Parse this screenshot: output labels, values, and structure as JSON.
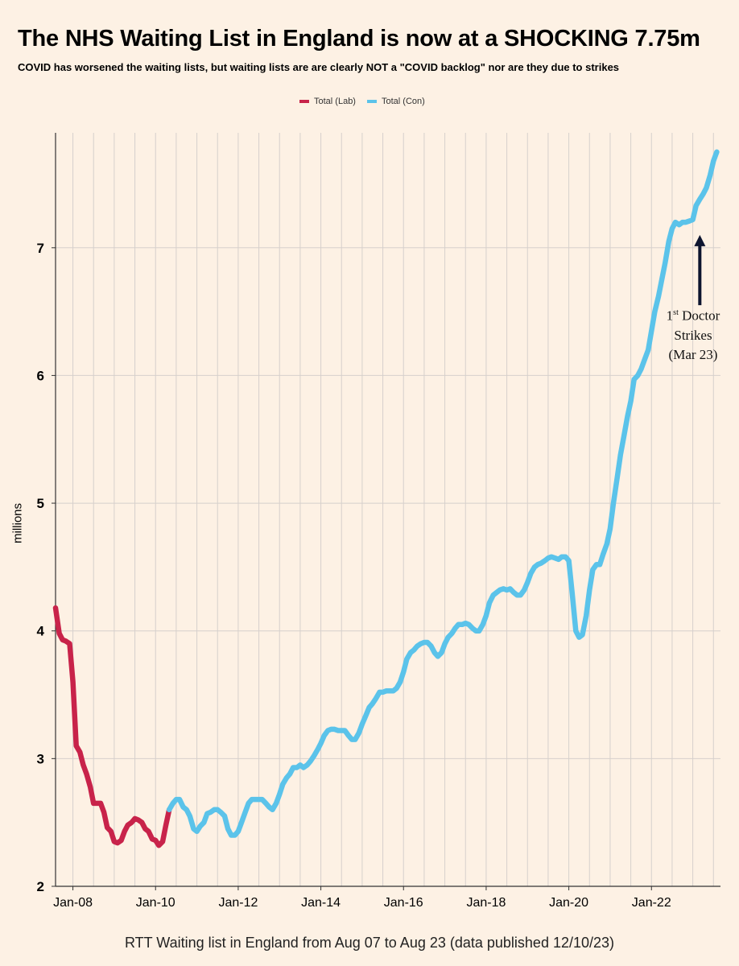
{
  "title": "The NHS Waiting List in England is now at a SHOCKING 7.75m",
  "subtitle": "COVID has worsened the waiting lists, but waiting lists are are clearly NOT a \"COVID backlog\" nor are they due to strikes",
  "caption": "RTT Waiting list in England from Aug 07 to Aug 23 (data published 12/10/23)",
  "annotation": {
    "ordinal_number": "1",
    "ordinal_suffix": "st",
    "line1_rest": " Doctor",
    "line2": "Strikes",
    "line3": "(Mar 23)",
    "arrow_x": 2023.17,
    "arrow_from_y": 6.55,
    "arrow_to_y": 7.1
  },
  "colors": {
    "lab": "#c8234a",
    "con": "#5bc3ea",
    "grid": "#d6d0cc",
    "axis": "#333333",
    "background": "#fdf1e4"
  },
  "chart_data": {
    "type": "line",
    "title": "The NHS Waiting List in England is now at a SHOCKING 7.75m",
    "ylabel": "millions",
    "xlabel": "",
    "xlim": [
      2007.58,
      2023.67
    ],
    "ylim": [
      2,
      7.9
    ],
    "y_ticks": [
      2,
      3,
      4,
      5,
      6,
      7
    ],
    "x_ticks": [
      {
        "x": 2008,
        "label": "Jan-08"
      },
      {
        "x": 2010,
        "label": "Jan-10"
      },
      {
        "x": 2012,
        "label": "Jan-12"
      },
      {
        "x": 2014,
        "label": "Jan-14"
      },
      {
        "x": 2016,
        "label": "Jan-16"
      },
      {
        "x": 2018,
        "label": "Jan-18"
      },
      {
        "x": 2020,
        "label": "Jan-20"
      },
      {
        "x": 2022,
        "label": "Jan-22"
      }
    ],
    "grid": true,
    "legend_position": "top-center",
    "series": [
      {
        "name": "Total (Lab)",
        "color": "#c8234a",
        "points": [
          [
            2007.58,
            4.18
          ],
          [
            2007.67,
            3.98
          ],
          [
            2007.75,
            3.93
          ],
          [
            2007.83,
            3.92
          ],
          [
            2007.92,
            3.9
          ],
          [
            2008.0,
            3.6
          ],
          [
            2008.08,
            3.1
          ],
          [
            2008.17,
            3.05
          ],
          [
            2008.25,
            2.95
          ],
          [
            2008.33,
            2.88
          ],
          [
            2008.42,
            2.78
          ],
          [
            2008.5,
            2.65
          ],
          [
            2008.58,
            2.65
          ],
          [
            2008.67,
            2.65
          ],
          [
            2008.75,
            2.58
          ],
          [
            2008.83,
            2.46
          ],
          [
            2008.92,
            2.43
          ],
          [
            2009.0,
            2.35
          ],
          [
            2009.08,
            2.34
          ],
          [
            2009.17,
            2.36
          ],
          [
            2009.25,
            2.43
          ],
          [
            2009.33,
            2.48
          ],
          [
            2009.42,
            2.5
          ],
          [
            2009.5,
            2.53
          ],
          [
            2009.58,
            2.52
          ],
          [
            2009.67,
            2.5
          ],
          [
            2009.75,
            2.45
          ],
          [
            2009.83,
            2.43
          ],
          [
            2009.92,
            2.37
          ],
          [
            2010.0,
            2.36
          ],
          [
            2010.08,
            2.32
          ],
          [
            2010.17,
            2.35
          ],
          [
            2010.25,
            2.48
          ],
          [
            2010.33,
            2.6
          ]
        ]
      },
      {
        "name": "Total (Con)",
        "color": "#5bc3ea",
        "points": [
          [
            2010.33,
            2.6
          ],
          [
            2010.42,
            2.65
          ],
          [
            2010.5,
            2.68
          ],
          [
            2010.58,
            2.68
          ],
          [
            2010.67,
            2.62
          ],
          [
            2010.75,
            2.6
          ],
          [
            2010.83,
            2.55
          ],
          [
            2010.92,
            2.45
          ],
          [
            2011.0,
            2.43
          ],
          [
            2011.08,
            2.47
          ],
          [
            2011.17,
            2.5
          ],
          [
            2011.25,
            2.57
          ],
          [
            2011.33,
            2.58
          ],
          [
            2011.42,
            2.6
          ],
          [
            2011.5,
            2.6
          ],
          [
            2011.58,
            2.58
          ],
          [
            2011.67,
            2.55
          ],
          [
            2011.75,
            2.45
          ],
          [
            2011.83,
            2.4
          ],
          [
            2011.92,
            2.4
          ],
          [
            2012.0,
            2.43
          ],
          [
            2012.08,
            2.5
          ],
          [
            2012.17,
            2.58
          ],
          [
            2012.25,
            2.65
          ],
          [
            2012.33,
            2.68
          ],
          [
            2012.42,
            2.68
          ],
          [
            2012.5,
            2.68
          ],
          [
            2012.58,
            2.68
          ],
          [
            2012.67,
            2.65
          ],
          [
            2012.75,
            2.62
          ],
          [
            2012.83,
            2.6
          ],
          [
            2012.92,
            2.65
          ],
          [
            2013.0,
            2.72
          ],
          [
            2013.08,
            2.8
          ],
          [
            2013.17,
            2.85
          ],
          [
            2013.25,
            2.88
          ],
          [
            2013.33,
            2.93
          ],
          [
            2013.42,
            2.93
          ],
          [
            2013.5,
            2.95
          ],
          [
            2013.58,
            2.93
          ],
          [
            2013.67,
            2.95
          ],
          [
            2013.75,
            2.98
          ],
          [
            2013.83,
            3.02
          ],
          [
            2013.92,
            3.07
          ],
          [
            2014.0,
            3.12
          ],
          [
            2014.08,
            3.18
          ],
          [
            2014.17,
            3.22
          ],
          [
            2014.25,
            3.23
          ],
          [
            2014.33,
            3.23
          ],
          [
            2014.42,
            3.22
          ],
          [
            2014.5,
            3.22
          ],
          [
            2014.58,
            3.22
          ],
          [
            2014.67,
            3.18
          ],
          [
            2014.75,
            3.15
          ],
          [
            2014.83,
            3.15
          ],
          [
            2014.92,
            3.2
          ],
          [
            2015.0,
            3.27
          ],
          [
            2015.08,
            3.33
          ],
          [
            2015.17,
            3.4
          ],
          [
            2015.25,
            3.43
          ],
          [
            2015.33,
            3.47
          ],
          [
            2015.42,
            3.52
          ],
          [
            2015.5,
            3.52
          ],
          [
            2015.58,
            3.53
          ],
          [
            2015.67,
            3.53
          ],
          [
            2015.75,
            3.53
          ],
          [
            2015.83,
            3.55
          ],
          [
            2015.92,
            3.6
          ],
          [
            2016.0,
            3.68
          ],
          [
            2016.08,
            3.78
          ],
          [
            2016.17,
            3.83
          ],
          [
            2016.25,
            3.85
          ],
          [
            2016.33,
            3.88
          ],
          [
            2016.42,
            3.9
          ],
          [
            2016.5,
            3.91
          ],
          [
            2016.58,
            3.91
          ],
          [
            2016.67,
            3.88
          ],
          [
            2016.75,
            3.83
          ],
          [
            2016.83,
            3.8
          ],
          [
            2016.92,
            3.83
          ],
          [
            2017.0,
            3.9
          ],
          [
            2017.08,
            3.95
          ],
          [
            2017.17,
            3.98
          ],
          [
            2017.25,
            4.02
          ],
          [
            2017.33,
            4.05
          ],
          [
            2017.42,
            4.05
          ],
          [
            2017.5,
            4.06
          ],
          [
            2017.58,
            4.05
          ],
          [
            2017.67,
            4.02
          ],
          [
            2017.75,
            4.0
          ],
          [
            2017.83,
            4.0
          ],
          [
            2017.92,
            4.05
          ],
          [
            2018.0,
            4.12
          ],
          [
            2018.08,
            4.22
          ],
          [
            2018.17,
            4.28
          ],
          [
            2018.25,
            4.3
          ],
          [
            2018.33,
            4.32
          ],
          [
            2018.42,
            4.33
          ],
          [
            2018.5,
            4.32
          ],
          [
            2018.58,
            4.33
          ],
          [
            2018.67,
            4.3
          ],
          [
            2018.75,
            4.28
          ],
          [
            2018.83,
            4.28
          ],
          [
            2018.92,
            4.32
          ],
          [
            2019.0,
            4.38
          ],
          [
            2019.08,
            4.45
          ],
          [
            2019.17,
            4.5
          ],
          [
            2019.25,
            4.52
          ],
          [
            2019.33,
            4.53
          ],
          [
            2019.42,
            4.55
          ],
          [
            2019.5,
            4.57
          ],
          [
            2019.58,
            4.58
          ],
          [
            2019.67,
            4.57
          ],
          [
            2019.75,
            4.56
          ],
          [
            2019.83,
            4.58
          ],
          [
            2019.92,
            4.58
          ],
          [
            2020.0,
            4.55
          ],
          [
            2020.08,
            4.3
          ],
          [
            2020.17,
            4.0
          ],
          [
            2020.25,
            3.95
          ],
          [
            2020.33,
            3.97
          ],
          [
            2020.42,
            4.12
          ],
          [
            2020.5,
            4.32
          ],
          [
            2020.58,
            4.48
          ],
          [
            2020.67,
            4.52
          ],
          [
            2020.75,
            4.52
          ],
          [
            2020.83,
            4.6
          ],
          [
            2020.92,
            4.68
          ],
          [
            2021.0,
            4.8
          ],
          [
            2021.08,
            5.0
          ],
          [
            2021.17,
            5.2
          ],
          [
            2021.25,
            5.38
          ],
          [
            2021.33,
            5.52
          ],
          [
            2021.42,
            5.68
          ],
          [
            2021.5,
            5.8
          ],
          [
            2021.58,
            5.97
          ],
          [
            2021.67,
            6.0
          ],
          [
            2021.75,
            6.05
          ],
          [
            2021.83,
            6.12
          ],
          [
            2021.92,
            6.2
          ],
          [
            2022.0,
            6.35
          ],
          [
            2022.08,
            6.5
          ],
          [
            2022.17,
            6.62
          ],
          [
            2022.25,
            6.75
          ],
          [
            2022.33,
            6.88
          ],
          [
            2022.42,
            7.05
          ],
          [
            2022.5,
            7.15
          ],
          [
            2022.58,
            7.2
          ],
          [
            2022.67,
            7.18
          ],
          [
            2022.75,
            7.2
          ],
          [
            2022.83,
            7.2
          ],
          [
            2022.92,
            7.21
          ],
          [
            2023.0,
            7.22
          ],
          [
            2023.08,
            7.33
          ],
          [
            2023.17,
            7.38
          ],
          [
            2023.25,
            7.42
          ],
          [
            2023.33,
            7.47
          ],
          [
            2023.42,
            7.57
          ],
          [
            2023.5,
            7.68
          ],
          [
            2023.58,
            7.75
          ]
        ]
      }
    ]
  }
}
